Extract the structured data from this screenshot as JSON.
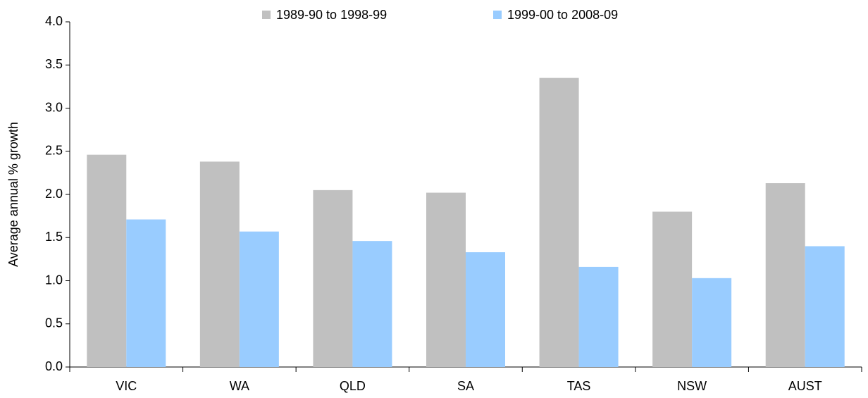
{
  "chart_data": {
    "type": "bar",
    "y_label": "Average annual % growth",
    "categories": [
      "VIC",
      "WA",
      "QLD",
      "SA",
      "TAS",
      "NSW",
      "AUST"
    ],
    "series": [
      {
        "name": "1989-90 to 1998-99",
        "color": "#c0c0c0",
        "values": [
          2.46,
          2.38,
          2.05,
          2.02,
          3.35,
          1.8,
          2.13
        ]
      },
      {
        "name": "1999-00 to 2008-09",
        "color": "#99ccff",
        "values": [
          1.71,
          1.57,
          1.46,
          1.33,
          1.16,
          1.03,
          1.4
        ]
      }
    ],
    "ylim": [
      0,
      4
    ],
    "yticks": [
      {
        "value": 0,
        "label": "0.0"
      },
      0.5,
      {
        "value": 1,
        "label": "1.0"
      },
      1.5,
      {
        "value": 2,
        "label": "2.0"
      },
      2.5,
      {
        "value": 3,
        "label": "3.0"
      },
      3.5,
      {
        "value": 4,
        "label": "4.0"
      }
    ],
    "grid": false,
    "legend": "top"
  }
}
